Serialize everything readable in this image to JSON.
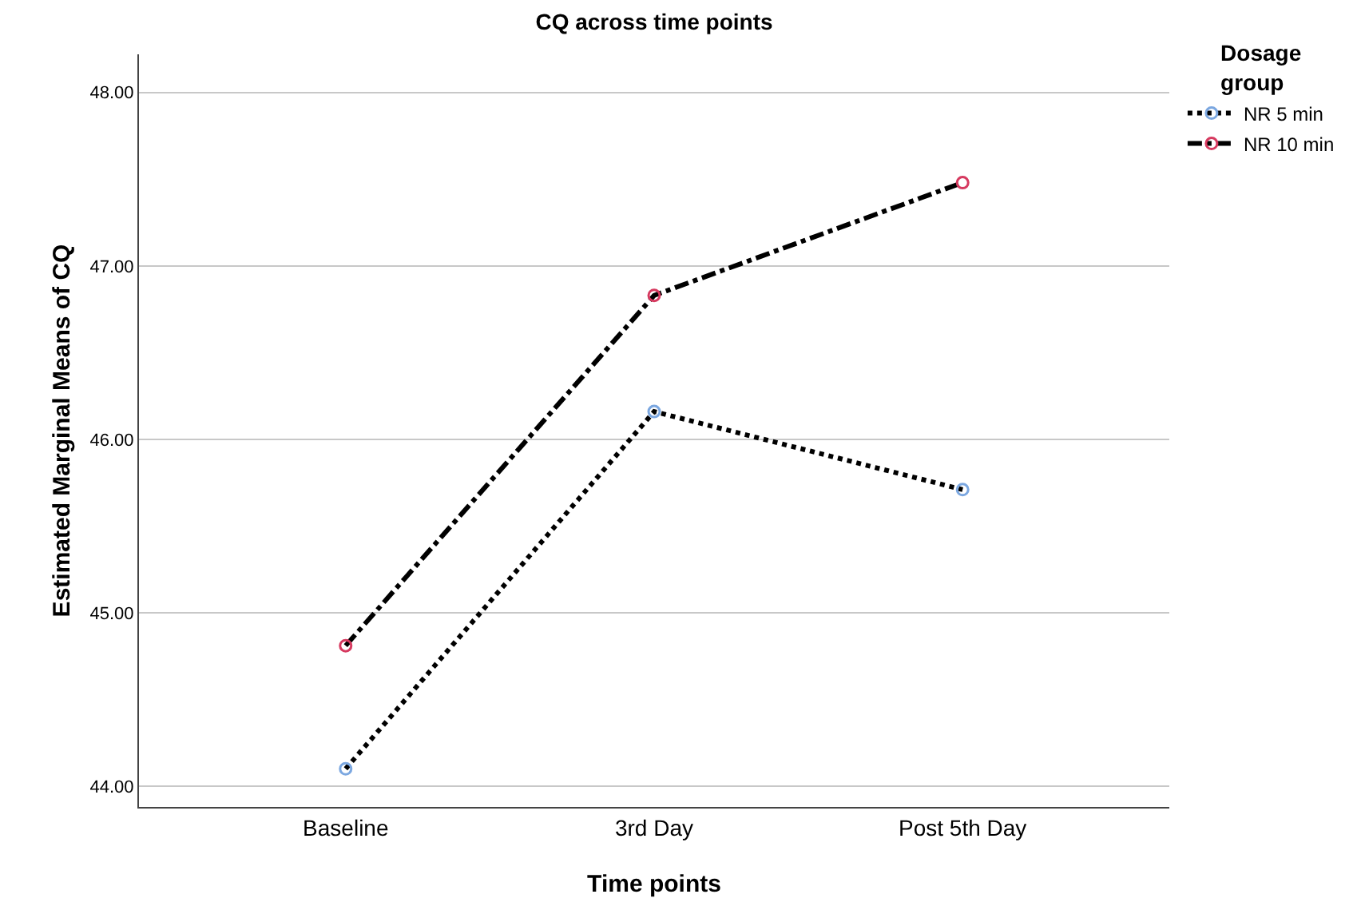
{
  "chart_data": {
    "type": "line",
    "title": "CQ across time points",
    "xlabel": "Time points",
    "ylabel": "Estimated Marginal Means of CQ",
    "legend_title": "Dosage group",
    "categories": [
      "Baseline",
      "3rd Day",
      "Post 5th Day"
    ],
    "series": [
      {
        "name": "NR 5 min",
        "color": "#000000",
        "colors": [
          "#7ba7e0",
          "#7ba7e0",
          "#7ba7e0"
        ],
        "line_style": "dotted",
        "values": [
          44.1,
          46.16,
          45.71
        ]
      },
      {
        "name": "NR 10 min",
        "color": "#000000",
        "colors": [
          "#d6395f",
          "#d6395f",
          "#d6395f"
        ],
        "line_style": "dashdot",
        "values": [
          44.81,
          46.83,
          47.48
        ]
      }
    ],
    "ylim": [
      43.88,
      48.22
    ],
    "yticks": [
      {
        "value": 44,
        "label": "44.00"
      },
      {
        "value": 45,
        "label": "45.00"
      },
      {
        "value": 46,
        "label": "46.00"
      },
      {
        "value": 47,
        "label": "47.00"
      },
      {
        "value": 48,
        "label": "48.00"
      }
    ],
    "grid": "y",
    "legend": "top right",
    "marker": "circle"
  }
}
